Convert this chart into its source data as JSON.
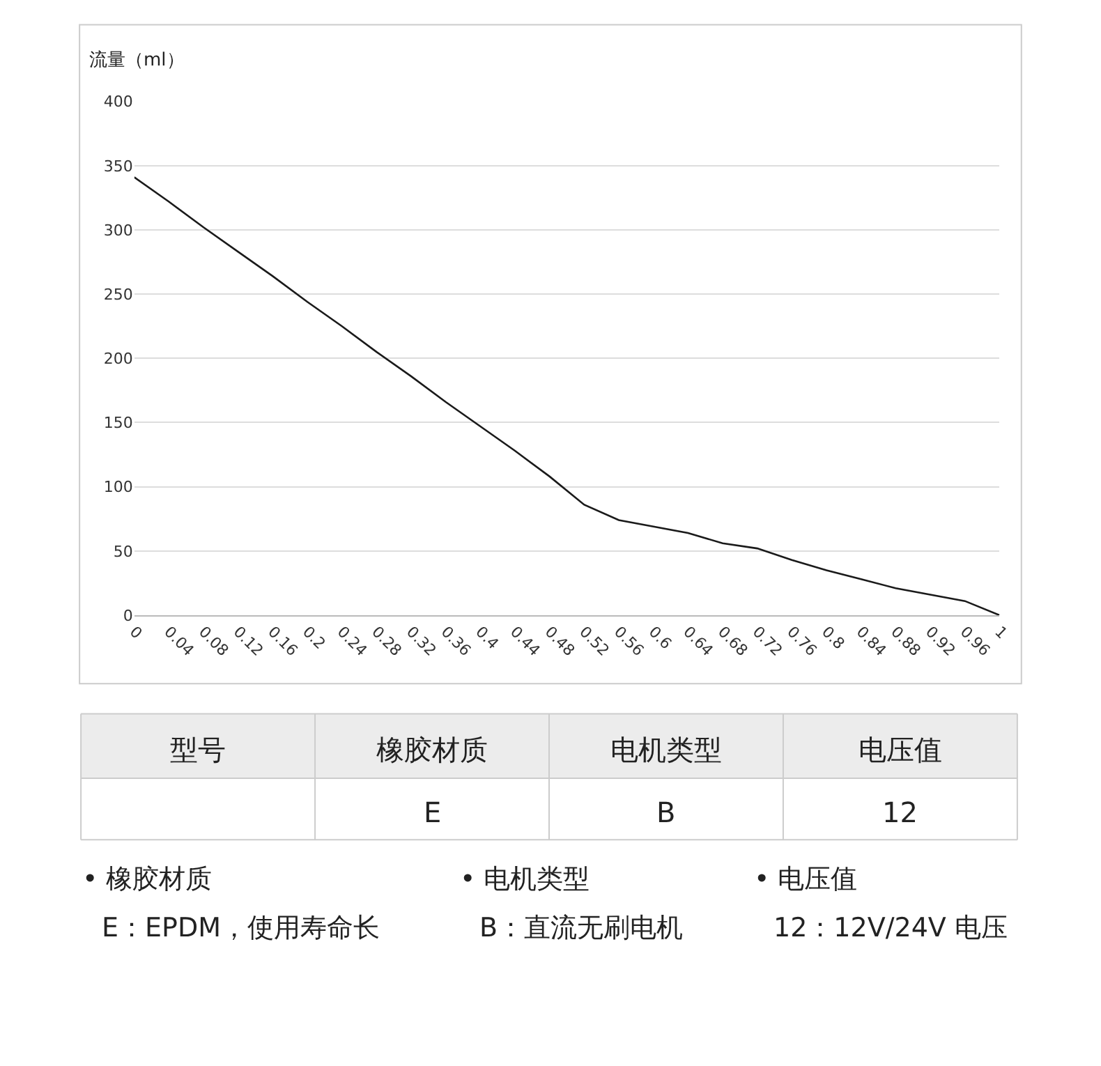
{
  "chart_data": [
    {
      "type": "line",
      "ylabel": "流量（ml）",
      "x": [
        0,
        0.04,
        0.08,
        0.12,
        0.16,
        0.2,
        0.24,
        0.28,
        0.32,
        0.36,
        0.4,
        0.44,
        0.48,
        0.52,
        0.56,
        0.6,
        0.64,
        0.68,
        0.72,
        0.76,
        0.8,
        0.84,
        0.88,
        0.92,
        0.96,
        1
      ],
      "series": [
        {
          "color": "#1a1a1a",
          "values": [
            341,
            322,
            302,
            283,
            264,
            244,
            225,
            205,
            186,
            166,
            147,
            128,
            108,
            86,
            74,
            69,
            64,
            56,
            52,
            43,
            35,
            28,
            21,
            16,
            11,
            0
          ]
        }
      ],
      "xlim": [
        0,
        1
      ],
      "xticks": [
        0,
        0.04,
        0.08,
        0.12,
        0.16,
        0.2,
        0.24,
        0.28,
        0.32,
        0.36,
        0.4,
        0.44,
        0.48,
        0.52,
        0.56,
        0.6,
        0.64,
        0.68,
        0.72,
        0.76,
        0.8,
        0.84,
        0.88,
        0.92,
        0.96,
        1
      ],
      "ylim": [
        0,
        400
      ],
      "yticks": [
        0,
        50,
        100,
        150,
        200,
        250,
        300,
        350,
        400
      ],
      "grid": "y",
      "marker": "none",
      "line_style": "solid"
    },
    {
      "type": "other",
      "annotations": [
        "型号",
        "橡胶材质",
        "电机类型",
        "电压值",
        "E",
        "B",
        "12",
        "• 橡胶材质",
        "• 电机类型",
        "• 电压值",
        "E：EPDM，使用寿命长",
        "B：直流无刷电机",
        "12：12V/24V 电压"
      ]
    }
  ]
}
